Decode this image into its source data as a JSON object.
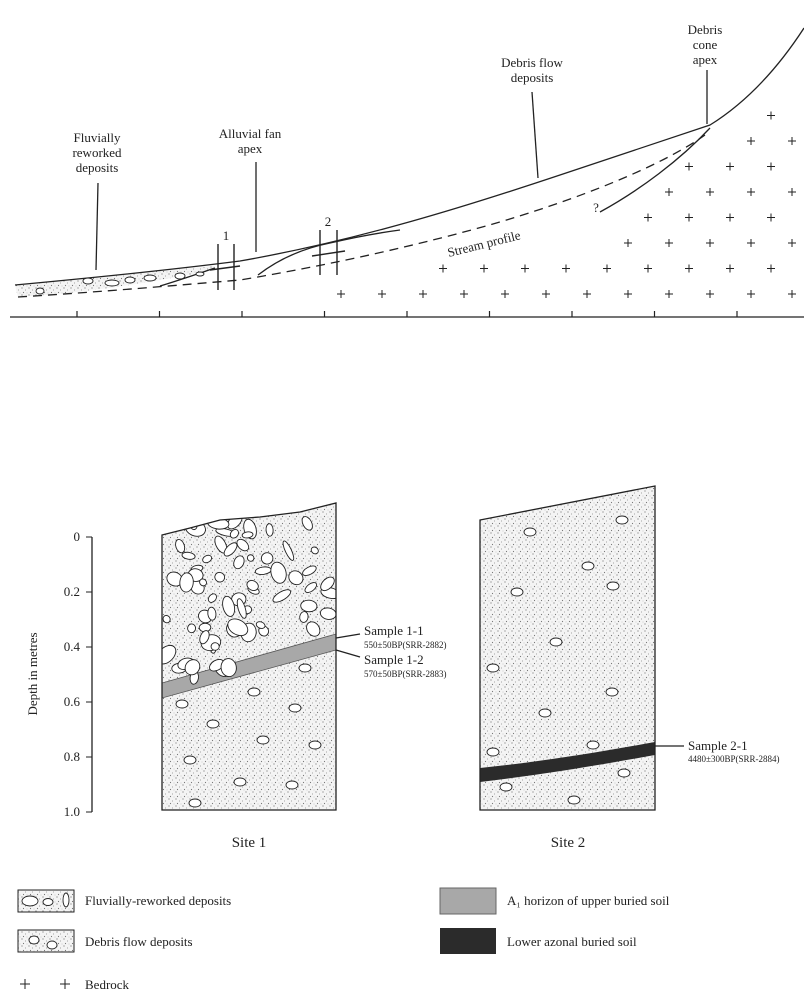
{
  "profile": {
    "labels": [
      {
        "lines": [
          "Fluvially",
          "reworked",
          "deposits"
        ]
      },
      {
        "lines": [
          "Alluvial fan",
          "apex"
        ]
      },
      {
        "lines": [
          "Debris flow",
          "deposits"
        ]
      },
      {
        "lines": [
          "Debris",
          "cone",
          "apex"
        ]
      }
    ],
    "stream_label": "Stream profile",
    "sites": [
      "1",
      "2"
    ],
    "uncertain": "?"
  },
  "sections": {
    "axis_label": "Depth in metres",
    "ticks": [
      "0",
      "0.2",
      "0.4",
      "0.6",
      "0.8",
      "1.0"
    ],
    "sites": [
      "Site 1",
      "Site 2"
    ],
    "samples": [
      {
        "name": "Sample 1-1",
        "date": "550±50BP(SRR-2882)"
      },
      {
        "name": "Sample 1-2",
        "date": "570±50BP(SRR-2883)"
      },
      {
        "name": "Sample 2-1",
        "date": "4480±300BP(SRR-2884)"
      }
    ]
  },
  "legend": [
    "Fluvially-reworked deposits",
    "Debris flow deposits",
    "Bedrock",
    "A₁ horizon of upper buried soil",
    "Lower azonal buried soil"
  ]
}
